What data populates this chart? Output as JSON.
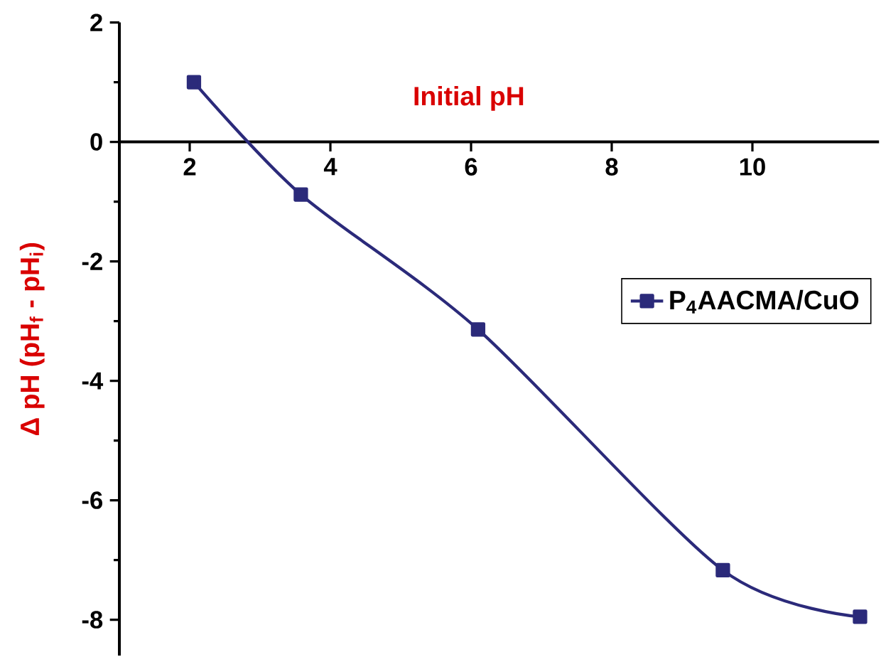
{
  "chart_data": {
    "type": "line",
    "xlabel": "Initial pH",
    "ylabel": "Δ pH (pH$_{f}$ - pH$_{i}$)",
    "x": [
      2.06,
      3.58,
      6.1,
      9.58,
      11.53
    ],
    "series": [
      {
        "name": "P$_{4}$AACMA/CuO",
        "color": "#2b2a7a",
        "values": [
          1.0,
          -0.88,
          -3.14,
          -7.17,
          -7.95
        ]
      }
    ],
    "xlim": [
      1,
      11.8
    ],
    "ylim": [
      -8.6,
      2
    ],
    "xticks": [
      2,
      4,
      6,
      8,
      10
    ],
    "yticks": [
      -8,
      -6,
      -4,
      -2,
      0,
      2
    ],
    "marker": "square",
    "line_style": "solid",
    "legend": "right",
    "grid": false
  }
}
